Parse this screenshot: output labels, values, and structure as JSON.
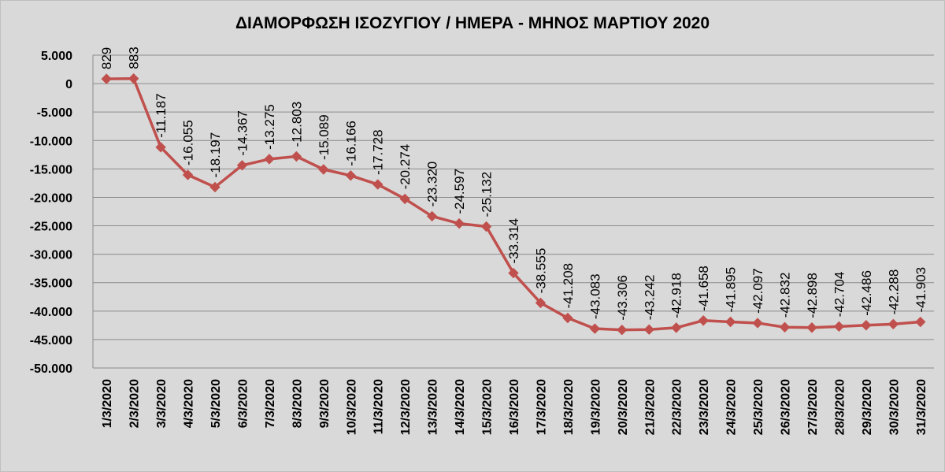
{
  "chart_data": {
    "type": "line",
    "title": "ΔΙΑΜΟΡΦΩΣΗ ΙΣΟΖΥΓΙΟΥ / ΗΜΕΡΑ - ΜΗΝΟΣ ΜΑΡΤΙΟΥ 2020",
    "xlabel": "",
    "ylabel": "",
    "ylim": [
      -50000,
      5000
    ],
    "y_ticks": [
      5000,
      0,
      -5000,
      -10000,
      -15000,
      -20000,
      -25000,
      -30000,
      -35000,
      -40000,
      -45000,
      -50000
    ],
    "y_tick_labels": [
      "5.000",
      "0",
      "-5.000",
      "-10.000",
      "-15.000",
      "-20.000",
      "-25.000",
      "-30.000",
      "-35.000",
      "-40.000",
      "-45.000",
      "-50.000"
    ],
    "grid": true,
    "legend": "none",
    "categories": [
      "1/3/2020",
      "2/3/2020",
      "3/3/2020",
      "4/3/2020",
      "5/3/2020",
      "6/3/2020",
      "7/3/2020",
      "8/3/2020",
      "9/3/2020",
      "10/3/2020",
      "11/3/2020",
      "12/3/2020",
      "13/3/2020",
      "14/3/2020",
      "15/3/2020",
      "16/3/2020",
      "17/3/2020",
      "18/3/2020",
      "19/3/2020",
      "20/3/2020",
      "21/3/2020",
      "22/3/2020",
      "23/3/2020",
      "24/3/2020",
      "25/3/2020",
      "26/3/2020",
      "27/3/2020",
      "28/3/2020",
      "29/3/2020",
      "30/3/2020",
      "31/3/2020"
    ],
    "series": [
      {
        "values": [
          829,
          883,
          -11187,
          -16055,
          -18197,
          -14367,
          -13275,
          -12803,
          -15089,
          -16166,
          -17728,
          -20274,
          -23320,
          -24597,
          -25132,
          -33314,
          -38555,
          -41208,
          -43083,
          -43306,
          -43242,
          -42918,
          -41658,
          -41895,
          -42097,
          -42832,
          -42898,
          -42704,
          -42486,
          -42288,
          -41903
        ],
        "labels": [
          "829",
          "883",
          "-11.187",
          "-16.055",
          "-18.197",
          "-14.367",
          "-13.275",
          "-12.803",
          "-15.089",
          "-16.166",
          "-17.728",
          "-20.274",
          "-23.320",
          "-24.597",
          "-25.132",
          "-33.314",
          "-38.555",
          "-41.208",
          "-43.083",
          "-43.306",
          "-43.242",
          "-42.918",
          "-41.658",
          "-41.895",
          "-42.097",
          "-42.832",
          "-42.898",
          "-42.704",
          "-42.486",
          "-42.288",
          "-41.903"
        ],
        "color": "#c0504d",
        "marker": "diamond"
      }
    ]
  },
  "colors": {
    "background": "#d9d9d9",
    "line": "#c0504d",
    "gridline": "#8c8c8c",
    "text": "#000000"
  }
}
